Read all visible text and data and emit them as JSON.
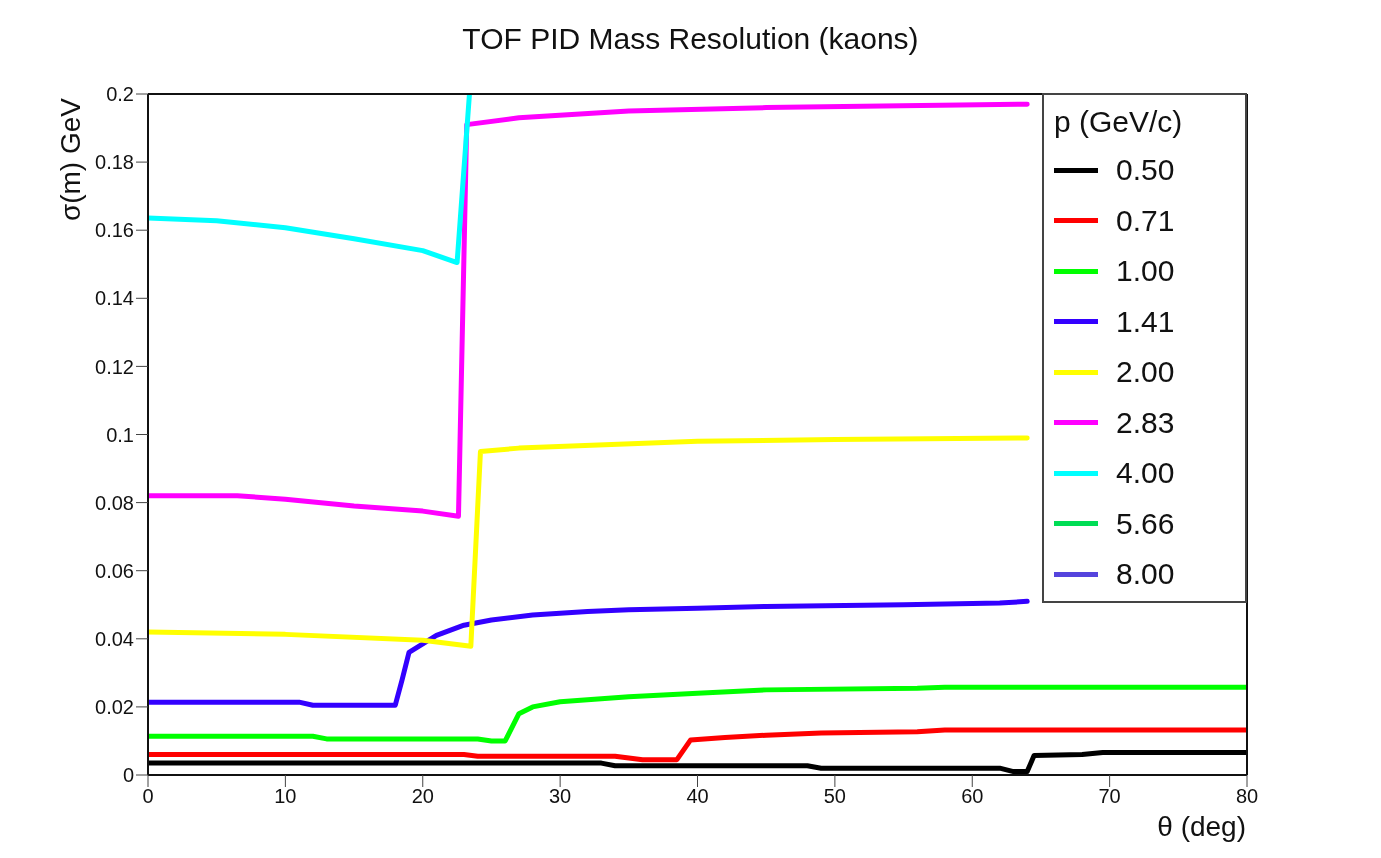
{
  "chart_data": {
    "type": "line",
    "title": "TOF PID Mass Resolution (kaons)",
    "xlabel": "θ (deg)",
    "ylabel": "σ(m) GeV",
    "legend_title": "p (GeV/c)",
    "xlim": [
      0,
      80
    ],
    "xticks": [
      0,
      10,
      20,
      30,
      40,
      50,
      60,
      70,
      80
    ],
    "ylim": [
      0,
      0.2
    ],
    "yticks": [
      0,
      0.02,
      0.04,
      0.06,
      0.08,
      0.1,
      0.12,
      0.14,
      0.16,
      0.18,
      0.2
    ],
    "grid": false,
    "legend": "top right",
    "marker": "none",
    "line_style": "solid",
    "series": [
      {
        "name": "0.50",
        "color": "#000000",
        "x": [
          0,
          33,
          34,
          48,
          49,
          62,
          63,
          64,
          64.5,
          68,
          69.5,
          80
        ],
        "values": [
          0.0035,
          0.0035,
          0.0027,
          0.0027,
          0.002,
          0.002,
          0.001,
          0.001,
          0.0057,
          0.006,
          0.0066,
          0.0066
        ]
      },
      {
        "name": "0.71",
        "color": "#ff0000",
        "x": [
          0,
          23,
          24,
          34,
          35,
          36,
          38.5,
          39.5,
          42,
          45,
          49,
          56,
          58,
          80
        ],
        "values": [
          0.006,
          0.006,
          0.0055,
          0.0055,
          0.005,
          0.0045,
          0.0045,
          0.0103,
          0.011,
          0.0117,
          0.0123,
          0.0127,
          0.0132,
          0.0132
        ]
      },
      {
        "name": "1.00",
        "color": "#00ff00",
        "x": [
          0,
          12,
          13,
          24,
          25,
          26,
          27,
          28,
          30,
          35,
          40,
          45,
          56,
          58,
          80
        ],
        "values": [
          0.0114,
          0.0114,
          0.0106,
          0.0106,
          0.01,
          0.01,
          0.018,
          0.02,
          0.0215,
          0.023,
          0.024,
          0.025,
          0.0255,
          0.0258,
          0.0258
        ]
      },
      {
        "name": "1.41",
        "color": "#3300ff",
        "x": [
          0,
          11,
          12,
          18,
          18.5,
          19,
          21,
          23,
          25,
          28,
          32,
          35,
          40,
          45,
          55,
          62,
          64
        ],
        "values": [
          0.0214,
          0.0214,
          0.0205,
          0.0205,
          0.028,
          0.036,
          0.041,
          0.044,
          0.0455,
          0.047,
          0.048,
          0.0485,
          0.049,
          0.0495,
          0.05,
          0.0505,
          0.051
        ]
      },
      {
        "name": "2.00",
        "color": "#ffff00",
        "x": [
          0,
          10,
          20,
          23.5,
          24.2,
          27,
          40,
          50,
          64
        ],
        "values": [
          0.042,
          0.0413,
          0.0396,
          0.0378,
          0.095,
          0.096,
          0.098,
          0.0985,
          0.099
        ]
      },
      {
        "name": "2.83",
        "color": "#ff00ff",
        "x": [
          0,
          6.5,
          10,
          15,
          20,
          22.6,
          23.2,
          27,
          35,
          45,
          64
        ],
        "values": [
          0.082,
          0.082,
          0.081,
          0.079,
          0.0775,
          0.076,
          0.191,
          0.193,
          0.195,
          0.196,
          0.197
        ]
      },
      {
        "name": "4.00",
        "color": "#00ffff",
        "x": [
          0,
          5,
          10,
          15,
          20,
          22.5,
          23.4
        ],
        "values": [
          0.1636,
          0.1628,
          0.1607,
          0.1575,
          0.154,
          0.1505,
          0.2
        ]
      },
      {
        "name": "5.66",
        "color": "#00dd55"
      },
      {
        "name": "8.00",
        "color": "#5544dd"
      }
    ]
  }
}
